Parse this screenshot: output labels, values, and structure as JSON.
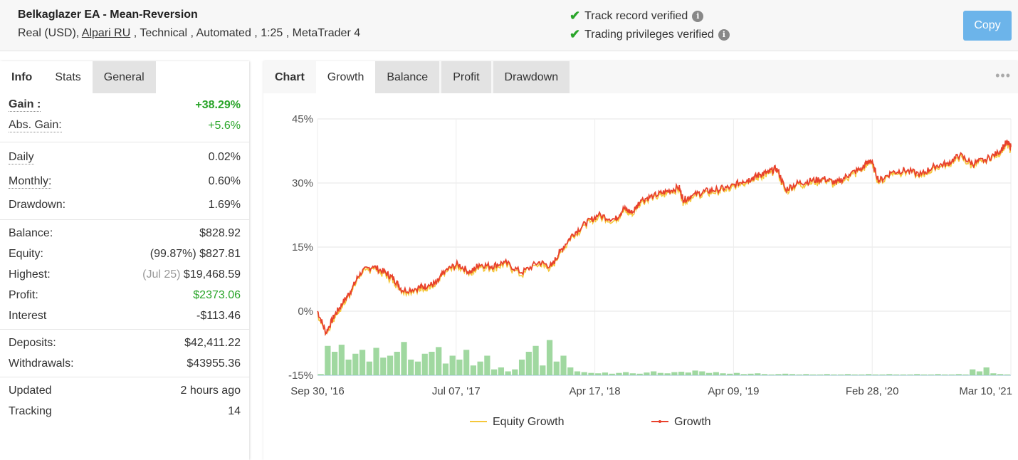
{
  "header": {
    "title": "Belkaglazer EA - Mean-Reversion",
    "sub_prefix": "Real (USD), ",
    "broker": "Alpari RU",
    "sub_suffix": " , Technical , Automated , 1:25 , MetaTrader 4",
    "track_record": "Track record verified",
    "trading_privileges": "Trading privileges verified",
    "copy_label": "Copy"
  },
  "left_tabs": [
    "Info",
    "Stats",
    "General"
  ],
  "stats": {
    "gain_label": "Gain :",
    "gain": "+38.29%",
    "abs_gain_label": "Abs. Gain:",
    "abs_gain": "+5.6%",
    "daily_label": "Daily",
    "daily": "0.02%",
    "monthly_label": "Monthly:",
    "monthly": "0.60%",
    "drawdown_label": "Drawdown:",
    "drawdown": "1.69%",
    "balance_label": "Balance:",
    "balance": "$828.92",
    "equity_label": "Equity:",
    "equity_pct": "(99.87%)",
    "equity": "$827.81",
    "highest_label": "Highest:",
    "highest_date": "(Jul 25)",
    "highest": "$19,468.59",
    "profit_label": "Profit:",
    "profit": "$2373.06",
    "interest_label": "Interest",
    "interest": "-$113.46",
    "deposits_label": "Deposits:",
    "deposits": "$42,411.22",
    "withdrawals_label": "Withdrawals:",
    "withdrawals": "$43955.36",
    "updated_label": "Updated",
    "updated": "2 hours ago",
    "tracking_label": "Tracking",
    "tracking": "14"
  },
  "right_tabs": [
    "Chart",
    "Growth",
    "Balance",
    "Profit",
    "Drawdown"
  ],
  "colors": {
    "growth": "#e8412c",
    "equity": "#f5c73b",
    "volume": "#8fd18f",
    "accent": "#2aa52a",
    "copy": "#6cb4ea"
  },
  "chart_data": {
    "type": "line",
    "y_tick_labels": [
      "45%",
      "30%",
      "15%",
      "0%",
      "-15%"
    ],
    "y_ticks": [
      45,
      30,
      15,
      0,
      -15
    ],
    "ylim": [
      -15,
      45
    ],
    "x_tick_labels": [
      "Sep 30, '16",
      "Jul 07, '17",
      "Apr 17, '18",
      "Apr 09, '19",
      "Feb 28, '20",
      "Mar 10, '21"
    ],
    "grid": true,
    "legend_position": "bottom-center",
    "series": [
      {
        "name": "Equity Growth"
      },
      {
        "name": "Growth"
      }
    ],
    "growth_points": [
      [
        0.0,
        0.0
      ],
      [
        0.02,
        -5.0
      ],
      [
        0.04,
        -1.0
      ],
      [
        0.06,
        2.0
      ],
      [
        0.08,
        5.0
      ],
      [
        0.1,
        9.0
      ],
      [
        0.13,
        10.5
      ],
      [
        0.16,
        9.0
      ],
      [
        0.18,
        7.5
      ],
      [
        0.2,
        4.8
      ],
      [
        0.24,
        5.5
      ],
      [
        0.26,
        6.0
      ],
      [
        0.28,
        6.5
      ],
      [
        0.3,
        9.5
      ],
      [
        0.33,
        11.0
      ],
      [
        0.36,
        9.0
      ],
      [
        0.38,
        11.0
      ],
      [
        0.41,
        10.5
      ],
      [
        0.44,
        11.5
      ],
      [
        0.48,
        9.0
      ],
      [
        0.52,
        11.5
      ],
      [
        0.55,
        10.5
      ],
      [
        0.57,
        14.0
      ],
      [
        0.6,
        18.0
      ],
      [
        0.63,
        20.5
      ],
      [
        0.66,
        22.5
      ],
      [
        0.7,
        21.5
      ],
      [
        0.72,
        24.0
      ],
      [
        0.74,
        23.0
      ],
      [
        0.76,
        26.0
      ],
      [
        0.79,
        27.0
      ],
      [
        0.82,
        28.0
      ],
      [
        0.85,
        29.0
      ],
      [
        0.86,
        26.0
      ],
      [
        0.88,
        27.0
      ],
      [
        0.91,
        28.0
      ],
      [
        0.94,
        28.5
      ],
      [
        0.97,
        29.0
      ],
      [
        1.0,
        30.5
      ],
      [
        1.02,
        31.0
      ],
      [
        1.04,
        32.0
      ],
      [
        1.06,
        32.5
      ],
      [
        1.08,
        33.5
      ],
      [
        1.1,
        28.5
      ],
      [
        1.13,
        30.0
      ],
      [
        1.16,
        30.5
      ],
      [
        1.19,
        31.0
      ],
      [
        1.22,
        30.0
      ],
      [
        1.25,
        32.0
      ],
      [
        1.28,
        33.5
      ],
      [
        1.3,
        35.5
      ],
      [
        1.32,
        30.5
      ],
      [
        1.35,
        32.5
      ],
      [
        1.38,
        33.0
      ],
      [
        1.42,
        32.0
      ],
      [
        1.45,
        34.0
      ],
      [
        1.48,
        34.5
      ],
      [
        1.51,
        36.5
      ],
      [
        1.54,
        34.5
      ],
      [
        1.57,
        35.5
      ],
      [
        1.6,
        37.0
      ],
      [
        1.62,
        39.5
      ],
      [
        1.63,
        38.5
      ]
    ],
    "volume_bars": [
      0.3,
      7.5,
      6.0,
      7.8,
      4.0,
      5.5,
      6.5,
      3.5,
      7.0,
      4.5,
      5.0,
      6.0,
      8.5,
      4.0,
      3.5,
      5.5,
      6.0,
      7.2,
      3.0,
      5.0,
      4.0,
      6.5,
      2.5,
      3.5,
      5.0,
      1.5,
      2.0,
      1.0,
      1.5,
      4.0,
      6.0,
      7.5,
      2.5,
      9.0,
      3.5,
      5.0,
      2.0,
      1.0,
      0.8,
      0.6,
      0.5,
      0.7,
      0.4,
      0.6,
      0.8,
      0.5,
      0.4,
      0.7,
      1.0,
      0.6,
      0.5,
      0.8,
      0.9,
      0.7,
      1.2,
      1.0,
      0.6,
      0.8,
      0.5,
      0.4,
      0.6,
      0.3,
      0.4,
      0.5,
      0.3,
      0.2,
      0.3,
      0.4,
      0.3,
      0.2,
      0.3,
      0.2,
      0.2,
      0.3,
      0.2,
      0.2,
      0.3,
      0.2,
      0.2,
      0.3,
      0.2,
      0.2,
      0.3,
      0.2,
      0.2,
      0.2,
      0.3,
      0.2,
      0.2,
      0.3,
      0.2,
      0.2,
      0.3,
      0.2,
      1.5,
      1.0,
      2.0,
      0.5,
      0.3,
      0.2
    ]
  }
}
